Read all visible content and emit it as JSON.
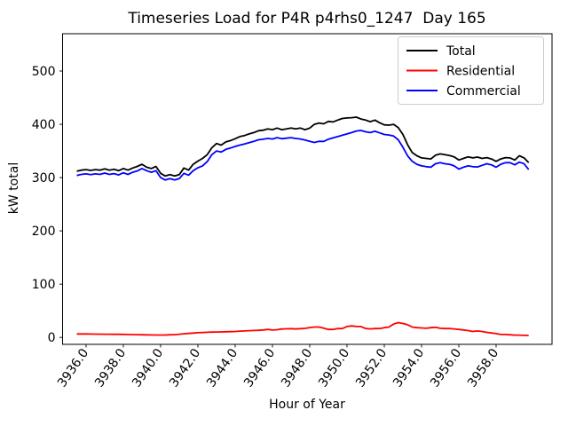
{
  "title": "Timeseries Load for P4R p4rhs0_1247  Day 165",
  "chart_data": {
    "type": "line",
    "title": "Timeseries Load for P4R p4rhs0_1247  Day 165",
    "xlabel": "Hour of Year",
    "ylabel": "kW total",
    "xlim": [
      3934.74,
      3961.0
    ],
    "ylim": [
      -13,
      570
    ],
    "grid": false,
    "x_ticks": [
      3936,
      3938,
      3940,
      3942,
      3944,
      3946,
      3948,
      3950,
      3952,
      3954,
      3956,
      3958
    ],
    "x_tick_labels": [
      "3936.0",
      "3938.0",
      "3940.0",
      "3942.0",
      "3944.0",
      "3946.0",
      "3948.0",
      "3950.0",
      "3952.0",
      "3954.0",
      "3956.0",
      "3958.0"
    ],
    "y_ticks": [
      0,
      100,
      200,
      300,
      400,
      500
    ],
    "y_tick_labels": [
      "0",
      "100",
      "200",
      "300",
      "400",
      "500"
    ],
    "legend": {
      "position": "upper right",
      "entries": [
        "Total",
        "Residential",
        "Commercial"
      ]
    },
    "x_start": 3935.5,
    "x_step": 0.25,
    "series": [
      {
        "name": "Total",
        "color": "#000000",
        "values": [
          312,
          314,
          315,
          313.5,
          315,
          314,
          316.5,
          314,
          315.5,
          313,
          317,
          314,
          318,
          321,
          325,
          319.5,
          317,
          321,
          308,
          303,
          305.5,
          303,
          305.5,
          318,
          314,
          325,
          331,
          336,
          343,
          356,
          364,
          361,
          367,
          369.5,
          373,
          377,
          379,
          382,
          384.5,
          388,
          389,
          391.5,
          390,
          393,
          390,
          391.5,
          393,
          391.5,
          393,
          390,
          393,
          400,
          402.5,
          401,
          405.5,
          404.5,
          408,
          411,
          412,
          412.5,
          413.5,
          410,
          408,
          405,
          408,
          403,
          399,
          398.5,
          400,
          394,
          381,
          362,
          347,
          341,
          337,
          336,
          335,
          342,
          344.5,
          343,
          341.5,
          339,
          333,
          336,
          339,
          337,
          338.5,
          336,
          337.5,
          335,
          330.5,
          335,
          337.5,
          337,
          333,
          341,
          337,
          328
        ]
      },
      {
        "name": "Residential",
        "color": "#ff0000",
        "values": [
          6.5,
          6.5,
          6.5,
          6.3,
          6.2,
          6.2,
          6.0,
          6.0,
          5.8,
          5.8,
          5.6,
          5.5,
          5.3,
          5.2,
          5.0,
          4.8,
          4.6,
          4.5,
          4.5,
          4.5,
          5.0,
          5.2,
          6.0,
          6.8,
          7.5,
          8.2,
          8.8,
          9.2,
          9.7,
          10.0,
          10.2,
          10.4,
          10.6,
          10.8,
          11.2,
          11.8,
          12.2,
          12.6,
          13.0,
          13.4,
          14.0,
          15.0,
          13.8,
          14.5,
          15.8,
          16.2,
          16.5,
          15.8,
          16.5,
          17.0,
          18.5,
          19.5,
          19.5,
          17.5,
          15.0,
          15.0,
          16.7,
          16.7,
          20.5,
          21.7,
          20.5,
          20.5,
          16.7,
          16.0,
          16.7,
          16.7,
          18.3,
          19.5,
          25.0,
          27.8,
          26.2,
          23.8,
          19.5,
          18.3,
          17.8,
          17.2,
          18.3,
          19.0,
          17.2,
          16.7,
          16.7,
          16.0,
          15.0,
          14.0,
          12.8,
          11.2,
          12.2,
          11.2,
          9.5,
          8.3,
          7.2,
          5.5,
          5.5,
          5.0,
          4.4,
          4.4,
          3.8,
          3.8
        ]
      },
      {
        "name": "Commercial",
        "color": "#0000ff",
        "values": [
          304,
          306,
          307,
          305.5,
          307,
          306,
          308.5,
          306,
          307.5,
          305,
          309,
          306,
          310,
          312.5,
          317,
          313,
          310,
          313,
          300,
          295.5,
          298,
          295.5,
          298,
          308,
          304.5,
          313,
          318.5,
          322,
          330,
          343,
          350,
          348,
          353,
          355.5,
          358.5,
          361,
          363,
          365.5,
          368,
          371,
          372,
          373.5,
          372.5,
          375,
          373,
          374,
          375,
          373.5,
          372.5,
          370.5,
          368,
          366,
          368,
          368,
          372,
          374.5,
          377,
          379.5,
          382,
          384.5,
          387.5,
          388.5,
          386,
          384.5,
          387,
          384,
          381,
          380,
          378,
          371,
          357,
          341,
          330.5,
          325,
          322,
          320.5,
          319.5,
          326,
          328,
          326,
          325,
          322,
          316,
          319.5,
          322,
          320.5,
          320,
          323,
          326,
          324,
          319.5,
          325,
          328,
          328,
          324,
          329,
          326,
          315
        ]
      }
    ]
  }
}
